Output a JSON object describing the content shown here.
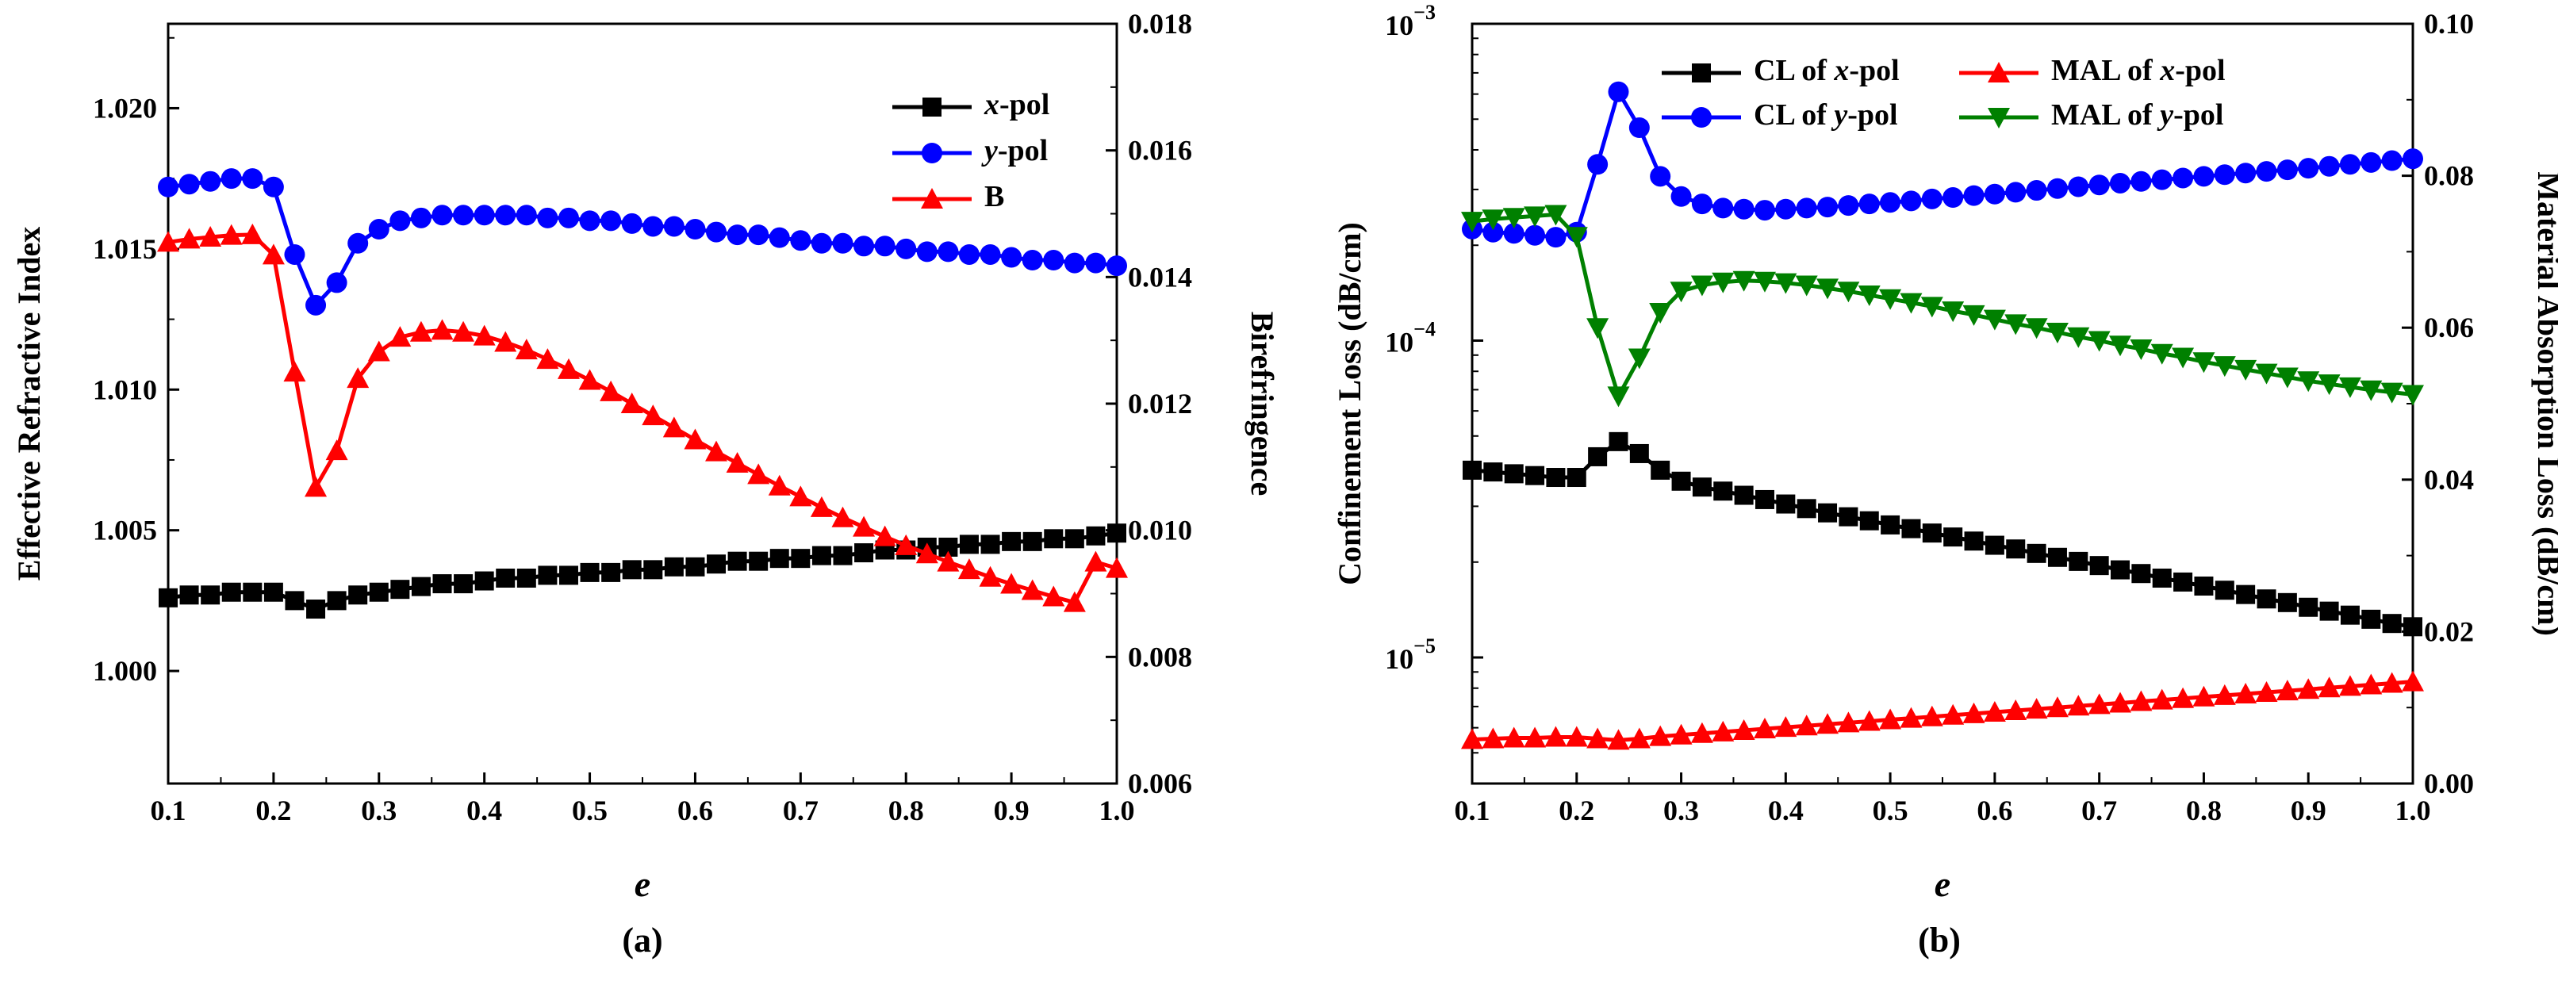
{
  "chart_data": [
    {
      "type": "line",
      "panel": "(a)",
      "xlabel": "e",
      "ylabel": "Effective Refractive Index",
      "y2label": "Birefringence",
      "xlim": [
        0.1,
        1.0
      ],
      "ylim": [
        0.996,
        1.023
      ],
      "y2lim": [
        0.006,
        0.018
      ],
      "xticks": [
        "0.1",
        "0.2",
        "0.3",
        "0.4",
        "0.5",
        "0.6",
        "0.7",
        "0.8",
        "0.9",
        "1.0"
      ],
      "yticks": [
        "1.000",
        "1.005",
        "1.010",
        "1.015",
        "1.020"
      ],
      "y2ticks": [
        "0.006",
        "0.008",
        "0.010",
        "0.012",
        "0.014",
        "0.016",
        "0.018"
      ],
      "legend_position": "top-right",
      "x": [
        0.1,
        0.12,
        0.14,
        0.16,
        0.18,
        0.2,
        0.22,
        0.24,
        0.26,
        0.28,
        0.3,
        0.32,
        0.34,
        0.36,
        0.38,
        0.4,
        0.42,
        0.44,
        0.46,
        0.48,
        0.5,
        0.52,
        0.54,
        0.56,
        0.58,
        0.6,
        0.62,
        0.64,
        0.66,
        0.68,
        0.7,
        0.72,
        0.74,
        0.76,
        0.78,
        0.8,
        0.82,
        0.84,
        0.86,
        0.88,
        0.9,
        0.92,
        0.94,
        0.96,
        0.98,
        1.0
      ],
      "series": [
        {
          "name_prefix": "x",
          "name_suffix": "-pol",
          "axis": "left",
          "color": "#000000",
          "marker": "square",
          "values": [
            1.0026,
            1.0027,
            1.0027,
            1.0028,
            1.0028,
            1.0028,
            1.0025,
            1.0022,
            1.0025,
            1.0027,
            1.0028,
            1.0029,
            1.003,
            1.0031,
            1.0031,
            1.0032,
            1.0033,
            1.0033,
            1.0034,
            1.0034,
            1.0035,
            1.0035,
            1.0036,
            1.0036,
            1.0037,
            1.0037,
            1.0038,
            1.0039,
            1.0039,
            1.004,
            1.004,
            1.0041,
            1.0041,
            1.0042,
            1.0043,
            1.0043,
            1.0044,
            1.0044,
            1.0045,
            1.0045,
            1.0046,
            1.0046,
            1.0047,
            1.0047,
            1.0048,
            1.0049
          ]
        },
        {
          "name_prefix": "y",
          "name_suffix": "-pol",
          "axis": "left",
          "color": "#0000ff",
          "marker": "circle",
          "values": [
            1.0172,
            1.0173,
            1.0174,
            1.0175,
            1.0175,
            1.0172,
            1.0148,
            1.013,
            1.0138,
            1.0152,
            1.0157,
            1.016,
            1.0161,
            1.0162,
            1.0162,
            1.0162,
            1.0162,
            1.0162,
            1.0161,
            1.0161,
            1.016,
            1.016,
            1.0159,
            1.0158,
            1.0158,
            1.0157,
            1.0156,
            1.0155,
            1.0155,
            1.0154,
            1.0153,
            1.0152,
            1.0152,
            1.0151,
            1.0151,
            1.015,
            1.0149,
            1.0149,
            1.0148,
            1.0148,
            1.0147,
            1.0146,
            1.0146,
            1.0145,
            1.0145,
            1.0144
          ]
        },
        {
          "name": "B",
          "axis": "right",
          "color": "#ff0000",
          "marker": "triangle-up",
          "values": [
            0.01455,
            0.0146,
            0.01463,
            0.01466,
            0.01467,
            0.01435,
            0.0125,
            0.01068,
            0.01126,
            0.0124,
            0.01282,
            0.01305,
            0.01313,
            0.01316,
            0.01313,
            0.01307,
            0.01297,
            0.01285,
            0.0127,
            0.01254,
            0.01237,
            0.01219,
            0.012,
            0.01181,
            0.01162,
            0.01143,
            0.01124,
            0.01106,
            0.01088,
            0.0107,
            0.01053,
            0.01036,
            0.0102,
            0.01005,
            0.0099,
            0.00976,
            0.00963,
            0.0095,
            0.00938,
            0.00926,
            0.00915,
            0.00905,
            0.00895,
            0.00886,
            0.0095,
            0.0094
          ]
        }
      ]
    },
    {
      "type": "line",
      "panel": "(b)",
      "xlabel": "e",
      "ylabel": "Confinement Loss (dB/cm)",
      "y2label": "Material Absorption Loss (dB/cm)",
      "y_scale": "log",
      "xlim": [
        0.1,
        1.0
      ],
      "ylim": [
        4e-06,
        0.001
      ],
      "y2lim": [
        0.0,
        0.1
      ],
      "xticks": [
        "0.1",
        "0.2",
        "0.3",
        "0.4",
        "0.5",
        "0.6",
        "0.7",
        "0.8",
        "0.9",
        "1.0"
      ],
      "yticks": [
        {
          "base": "10",
          "exp": "−3"
        },
        {
          "base": "10",
          "exp": "−4"
        },
        {
          "base": "10",
          "exp": "−5"
        }
      ],
      "y2ticks": [
        "0.00",
        "0.02",
        "0.04",
        "0.06",
        "0.08",
        "0.10"
      ],
      "legend_position": "top",
      "x": [
        0.1,
        0.12,
        0.14,
        0.16,
        0.18,
        0.2,
        0.22,
        0.24,
        0.26,
        0.28,
        0.3,
        0.32,
        0.34,
        0.36,
        0.38,
        0.4,
        0.42,
        0.44,
        0.46,
        0.48,
        0.5,
        0.52,
        0.54,
        0.56,
        0.58,
        0.6,
        0.62,
        0.64,
        0.66,
        0.68,
        0.7,
        0.72,
        0.74,
        0.76,
        0.78,
        0.8,
        0.82,
        0.84,
        0.86,
        0.88,
        0.9,
        0.92,
        0.94,
        0.96,
        0.98,
        1.0
      ],
      "series": [
        {
          "name_prefix": "CL of ",
          "name_italic": "x",
          "name_suffix": "-pol",
          "axis": "left",
          "color": "#000000",
          "marker": "square",
          "values": [
            3.9e-05,
            3.85e-05,
            3.8e-05,
            3.75e-05,
            3.7e-05,
            3.7e-05,
            4.3e-05,
            4.8e-05,
            4.4e-05,
            3.9e-05,
            3.6e-05,
            3.45e-05,
            3.35e-05,
            3.25e-05,
            3.15e-05,
            3.05e-05,
            2.95e-05,
            2.86e-05,
            2.78e-05,
            2.7e-05,
            2.62e-05,
            2.55e-05,
            2.47e-05,
            2.4e-05,
            2.33e-05,
            2.26e-05,
            2.2e-05,
            2.13e-05,
            2.07e-05,
            2.01e-05,
            1.95e-05,
            1.89e-05,
            1.84e-05,
            1.78e-05,
            1.73e-05,
            1.68e-05,
            1.63e-05,
            1.58e-05,
            1.53e-05,
            1.49e-05,
            1.44e-05,
            1.4e-05,
            1.36e-05,
            1.32e-05,
            1.28e-05,
            1.25e-05
          ]
        },
        {
          "name_prefix": "CL of ",
          "name_italic": "y",
          "name_suffix": "-pol",
          "axis": "left",
          "color": "#0000ff",
          "marker": "circle",
          "values": [
            0.000225,
            0.00022,
            0.000218,
            0.000215,
            0.000212,
            0.00022,
            0.00036,
            0.00061,
            0.00047,
            0.00033,
            0.000285,
            0.00027,
            0.000262,
            0.00026,
            0.000258,
            0.00026,
            0.000262,
            0.000264,
            0.000267,
            0.00027,
            0.000273,
            0.000276,
            0.00028,
            0.000283,
            0.000287,
            0.00029,
            0.000294,
            0.000298,
            0.000302,
            0.000306,
            0.00031,
            0.000314,
            0.000318,
            0.000322,
            0.000326,
            0.00033,
            0.000334,
            0.000338,
            0.000342,
            0.000346,
            0.00035,
            0.000355,
            0.00036,
            0.000365,
            0.00037,
            0.000375
          ]
        },
        {
          "name_prefix": "MAL of ",
          "name_italic": "x",
          "name_suffix": "-pol",
          "axis": "right",
          "color": "#ff0000",
          "marker": "triangle-up",
          "values": [
            0.0058,
            0.0059,
            0.006,
            0.006,
            0.0061,
            0.0061,
            0.0059,
            0.0057,
            0.0059,
            0.0062,
            0.0064,
            0.0066,
            0.0068,
            0.007,
            0.0072,
            0.0074,
            0.0076,
            0.0078,
            0.008,
            0.0082,
            0.0084,
            0.0086,
            0.0088,
            0.009,
            0.0092,
            0.0094,
            0.0096,
            0.0098,
            0.01,
            0.0102,
            0.0104,
            0.0106,
            0.0108,
            0.011,
            0.0112,
            0.0114,
            0.0116,
            0.0118,
            0.012,
            0.0122,
            0.0124,
            0.0126,
            0.0128,
            0.013,
            0.0132,
            0.0134
          ]
        },
        {
          "name_prefix": "MAL of ",
          "name_italic": "y",
          "name_suffix": "-pol",
          "axis": "right",
          "color": "#008000",
          "marker": "triangle-down",
          "values": [
            0.074,
            0.0743,
            0.0745,
            0.0747,
            0.0749,
            0.072,
            0.06,
            0.051,
            0.056,
            0.062,
            0.0648,
            0.0656,
            0.066,
            0.0662,
            0.0661,
            0.0659,
            0.0656,
            0.0652,
            0.0648,
            0.0643,
            0.0638,
            0.0633,
            0.0628,
            0.0622,
            0.0617,
            0.0611,
            0.0605,
            0.06,
            0.0594,
            0.0588,
            0.0583,
            0.0577,
            0.0572,
            0.0566,
            0.0561,
            0.0555,
            0.055,
            0.0545,
            0.054,
            0.0535,
            0.053,
            0.0526,
            0.0522,
            0.0518,
            0.0515,
            0.0512
          ]
        }
      ]
    }
  ]
}
